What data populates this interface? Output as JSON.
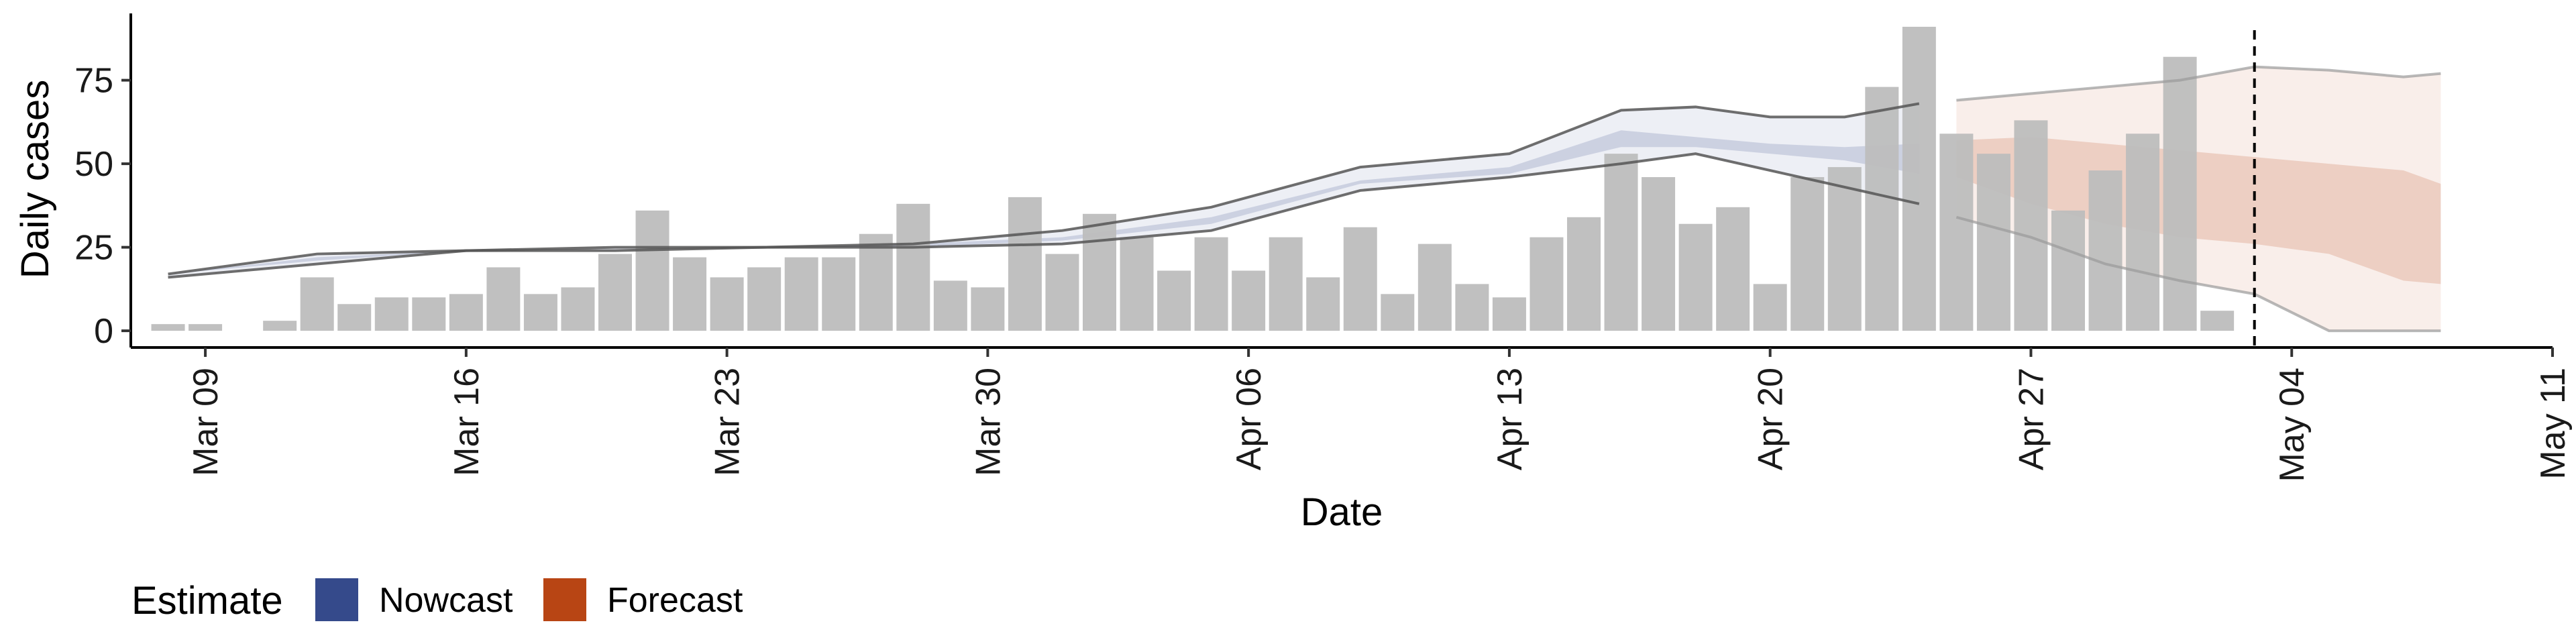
{
  "chart_data": {
    "type": "bar",
    "xlabel": "Date",
    "ylabel": "Daily cases",
    "x_start": "2020-03-07",
    "x_end": "2020-05-11",
    "ylim": [
      -5,
      95
    ],
    "y_ticks": [
      0,
      25,
      50,
      75
    ],
    "y_tick_labels": [
      "0",
      "25",
      "50",
      "75"
    ],
    "x_ticks": [
      {
        "date": "2020-03-09",
        "label": "Mar 09"
      },
      {
        "date": "2020-03-16",
        "label": "Mar 16"
      },
      {
        "date": "2020-03-23",
        "label": "Mar 23"
      },
      {
        "date": "2020-03-30",
        "label": "Mar 30"
      },
      {
        "date": "2020-04-06",
        "label": "Apr 06"
      },
      {
        "date": "2020-04-13",
        "label": "Apr 13"
      },
      {
        "date": "2020-04-20",
        "label": "Apr 20"
      },
      {
        "date": "2020-04-27",
        "label": "Apr 27"
      },
      {
        "date": "2020-05-04",
        "label": "May 04"
      },
      {
        "date": "2020-05-11",
        "label": "May 11"
      }
    ],
    "cases": {
      "first_date": "2020-03-08",
      "color": "#bdbdbd",
      "values": [
        2,
        2,
        0,
        3,
        16,
        8,
        10,
        10,
        11,
        19,
        11,
        13,
        23,
        36,
        22,
        16,
        19,
        22,
        22,
        29,
        38,
        15,
        13,
        40,
        23,
        35,
        28,
        18,
        28,
        18,
        28,
        16,
        31,
        11,
        26,
        14,
        10,
        28,
        34,
        53,
        46,
        32,
        37,
        14,
        46,
        49,
        73,
        91,
        59,
        53,
        63,
        36,
        48,
        59,
        82,
        6
      ]
    },
    "series": [
      {
        "name": "Nowcast",
        "color": "#354a8b",
        "x": [
          "2020-03-08",
          "2020-03-12",
          "2020-03-16",
          "2020-03-20",
          "2020-03-24",
          "2020-03-28",
          "2020-04-01",
          "2020-04-05",
          "2020-04-09",
          "2020-04-13",
          "2020-04-16",
          "2020-04-18",
          "2020-04-20",
          "2020-04-22",
          "2020-04-24"
        ],
        "lower_90": [
          16,
          20,
          24,
          24,
          25,
          25,
          26,
          30,
          42,
          46,
          50,
          53,
          48,
          43,
          38
        ],
        "lower_50": [
          17,
          21,
          24,
          25,
          25,
          25,
          27,
          32,
          44,
          47,
          55,
          55,
          53,
          51,
          47
        ],
        "upper_50": [
          17,
          22,
          24,
          25,
          25,
          26,
          28,
          34,
          45,
          49,
          60,
          58,
          56,
          55,
          56
        ],
        "upper_90": [
          17,
          23,
          24,
          25,
          25,
          26,
          30,
          37,
          49,
          53,
          66,
          67,
          64,
          64,
          68
        ]
      },
      {
        "name": "Forecast",
        "color": "#b84514",
        "x": [
          "2020-04-25",
          "2020-04-27",
          "2020-04-29",
          "2020-05-01",
          "2020-05-03",
          "2020-05-05",
          "2020-05-07",
          "2020-05-08"
        ],
        "lower_90": [
          34,
          28,
          20,
          15,
          11,
          0,
          0,
          0
        ],
        "lower_50": [
          46,
          38,
          32,
          28,
          26,
          23,
          15,
          14
        ],
        "upper_50": [
          57,
          58,
          56,
          54,
          52,
          50,
          48,
          44
        ],
        "upper_90": [
          69,
          71,
          73,
          75,
          79,
          78,
          76,
          77
        ]
      }
    ],
    "forecast_start": "2020-05-03",
    "legend": {
      "title": "Estimate",
      "position": "bottom-left"
    },
    "grid": false
  }
}
